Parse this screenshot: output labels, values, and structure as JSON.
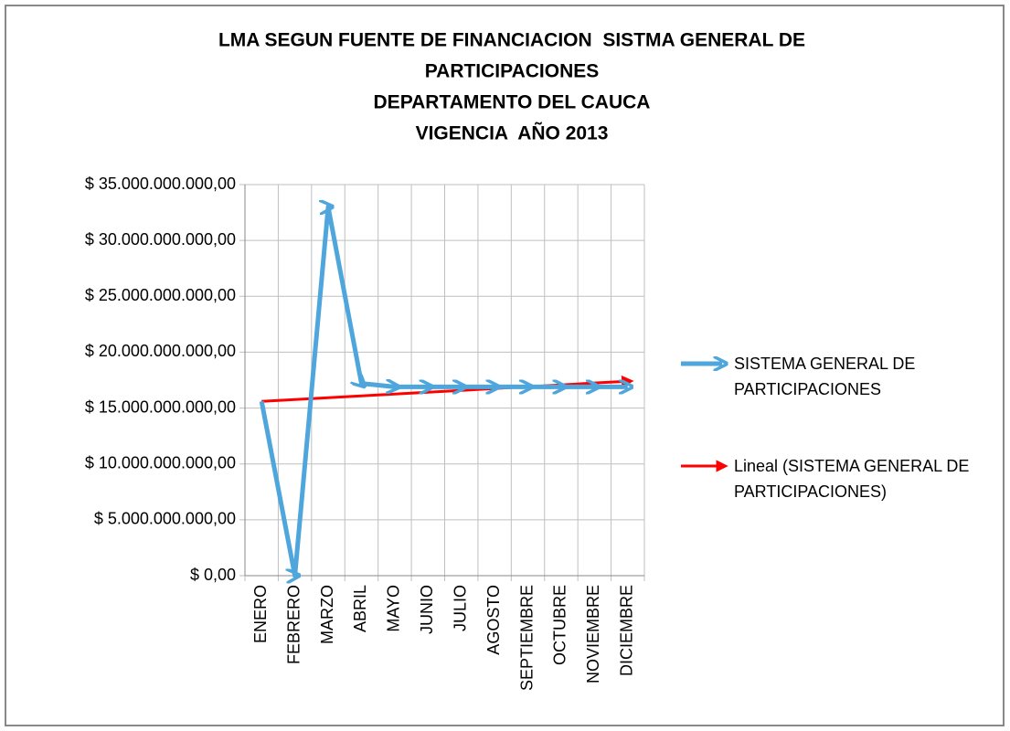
{
  "chart_data": {
    "type": "line",
    "title": [
      "LMA SEGUN FUENTE DE FINANCIACION  SISTMA GENERAL DE",
      "PARTICIPACIONES",
      "DEPARTAMENTO DEL CAUCA",
      "VIGENCIA  AÑO 2013"
    ],
    "categories": [
      "ENERO",
      "FEBRERO",
      "MARZO",
      "ABRIL",
      "MAYO",
      "JUNIO",
      "JULIO",
      "AGOSTO",
      "SEPTIEMBRE",
      "OCTUBRE",
      "NOVIEMBRE",
      "DICIEMBRE"
    ],
    "series": [
      {
        "name": "SISTEMA GENERAL DE PARTICIPACIONES",
        "color": "#4ea6dc",
        "values": [
          15600000000,
          0,
          33000000000,
          17200000000,
          16900000000,
          16900000000,
          16900000000,
          16900000000,
          16900000000,
          16900000000,
          16900000000,
          16900000000
        ]
      },
      {
        "name": "Lineal (SISTEMA GENERAL DE PARTICIPACIONES)",
        "color": "#ff0000",
        "values": [
          15600000000,
          15760000000,
          15930000000,
          16090000000,
          16250000000,
          16420000000,
          16580000000,
          16750000000,
          16910000000,
          17070000000,
          17240000000,
          17400000000
        ]
      }
    ],
    "ylim": [
      0,
      35000000000
    ],
    "yticks": [
      {
        "value": 0,
        "label": "$ 0,00"
      },
      {
        "value": 5000000000,
        "label": "$ 5.000.000.000,00"
      },
      {
        "value": 10000000000,
        "label": "$ 10.000.000.000,00"
      },
      {
        "value": 15000000000,
        "label": "$ 15.000.000.000,00"
      },
      {
        "value": 20000000000,
        "label": "$ 20.000.000.000,00"
      },
      {
        "value": 25000000000,
        "label": "$ 25.000.000.000,00"
      },
      {
        "value": 30000000000,
        "label": "$ 30.000.000.000,00"
      },
      {
        "value": 35000000000,
        "label": "$ 35.000.000.000,00"
      }
    ],
    "grid": true,
    "legend": "right"
  }
}
